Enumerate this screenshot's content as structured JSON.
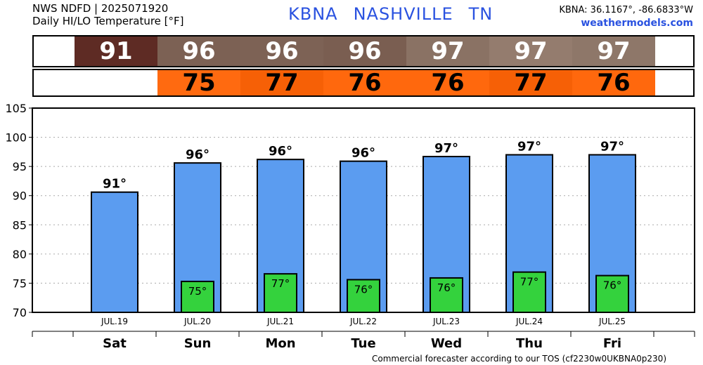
{
  "header": {
    "line1": "NWS NDFD | 2025071920",
    "line2": "Daily HI/LO Temperature [°F]",
    "station": "KBNA",
    "city": "NASHVILLE",
    "state": "TN",
    "coords": "KBNA: 36.1167°, -86.6833°W",
    "site": "weathermodels.com"
  },
  "hi_strip": [
    {
      "label": "91",
      "color": "#5e2b24"
    },
    {
      "label": "96",
      "color": "#7c6154"
    },
    {
      "label": "96",
      "color": "#7d6255"
    },
    {
      "label": "96",
      "color": "#7a5e51"
    },
    {
      "label": "97",
      "color": "#8a7264"
    },
    {
      "label": "97",
      "color": "#947c6e"
    },
    {
      "label": "97",
      "color": "#8e7769"
    }
  ],
  "lo_strip": [
    {
      "label": "",
      "color": "#ffffff"
    },
    {
      "label": "75",
      "color": "#ff6a10"
    },
    {
      "label": "77",
      "color": "#f66006"
    },
    {
      "label": "76",
      "color": "#ff680d"
    },
    {
      "label": "76",
      "color": "#ff680d"
    },
    {
      "label": "77",
      "color": "#f66006"
    },
    {
      "label": "76",
      "color": "#ff680d"
    }
  ],
  "chart_data": {
    "type": "bar",
    "categories": [
      "JUL.19",
      "JUL.20",
      "JUL.21",
      "JUL.22",
      "JUL.23",
      "JUL.24",
      "JUL.25"
    ],
    "days": [
      "Sat",
      "Sun",
      "Mon",
      "Tue",
      "Wed",
      "Thu",
      "Fri"
    ],
    "series": [
      {
        "values": [
          90.6,
          95.6,
          96.2,
          95.9,
          96.7,
          97.0,
          97.0
        ],
        "labels": [
          "91°",
          "96°",
          "96°",
          "96°",
          "97°",
          "97°",
          "97°"
        ],
        "color": "#5b9cf0"
      },
      {
        "values": [
          null,
          75.3,
          76.6,
          75.6,
          75.9,
          76.9,
          76.3
        ],
        "labels": [
          "",
          "75°",
          "77°",
          "76°",
          "76°",
          "77°",
          "76°"
        ],
        "color": "#34d23d"
      }
    ],
    "yticks": [
      "70",
      "75",
      "80",
      "85",
      "90",
      "95",
      "100",
      "105"
    ],
    "ylim": [
      70,
      105
    ],
    "grid": true
  },
  "footer": "Commercial forecaster according to our TOS (cf2230w0UKBNA0p230)"
}
